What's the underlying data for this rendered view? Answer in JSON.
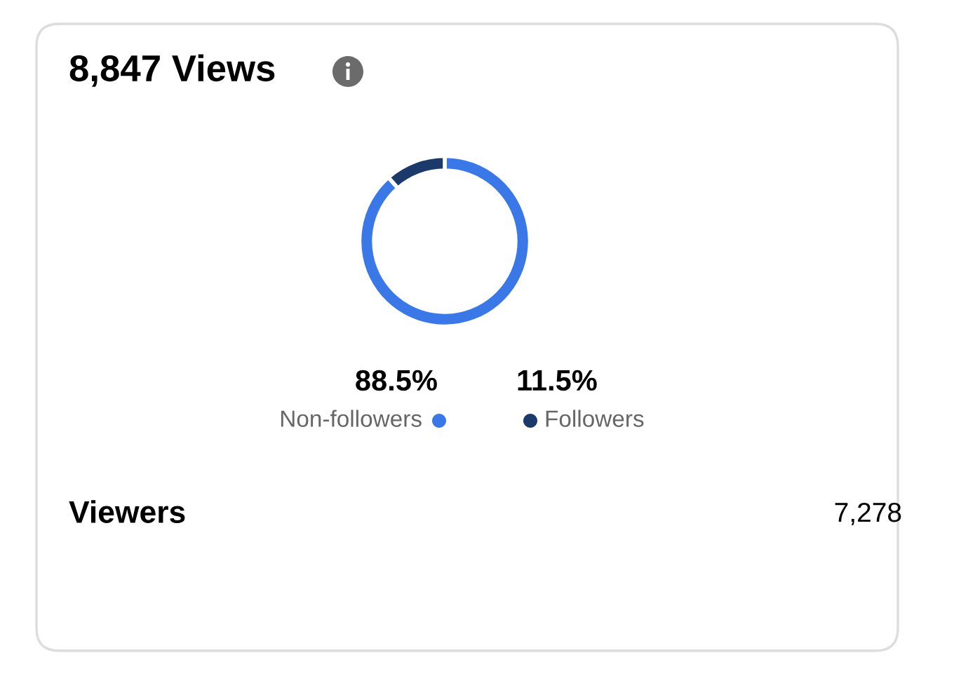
{
  "chart_data": {
    "type": "donut",
    "title": "8,847 Views",
    "categories": [
      "Non-followers",
      "Followers"
    ],
    "values": [
      88.5,
      11.5
    ],
    "colors": [
      "#3b78e7",
      "#1b3a6b"
    ],
    "value_labels": [
      "88.5%",
      "11.5%"
    ],
    "legend": "bottom",
    "annotations": [
      "Viewers",
      "7,278"
    ]
  }
}
